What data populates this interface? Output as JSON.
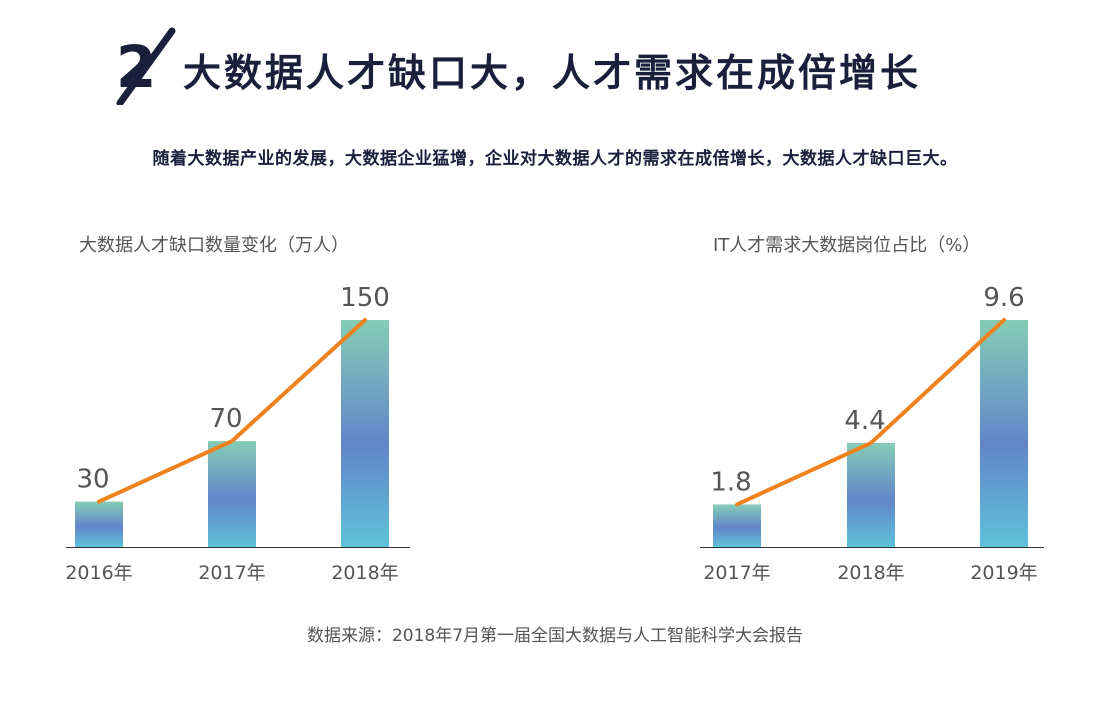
{
  "header": {
    "badge_icon": "number-2-slash-icon",
    "title": "大数据人才缺口大，人才需求在成倍增长",
    "subtitle": "随着大数据产业的发展，大数据企业猛增，企业对大数据人才的需求在成倍增长，大数据人才缺口巨大。"
  },
  "colors": {
    "title": "#1a1f3c",
    "line": "#f0821e",
    "bar_top": "#85cdb6",
    "bar_mid": "#6185c9",
    "bar_bottom": "#5fc2d9",
    "axis": "#333333",
    "label": "#555555"
  },
  "chart_data": [
    {
      "type": "bar",
      "title": "大数据人才缺口数量变化（万人）",
      "categories": [
        "2016年",
        "2017年",
        "2018年"
      ],
      "values": [
        30,
        70,
        150
      ],
      "value_labels": [
        "30",
        "70",
        "150"
      ],
      "overlay_line": true,
      "ylim": [
        0,
        150
      ],
      "grid": false,
      "legend": "none"
    },
    {
      "type": "bar",
      "title": "IT人才需求大数据岗位占比（%）",
      "categories": [
        "2017年",
        "2018年",
        "2019年"
      ],
      "values": [
        1.8,
        4.4,
        9.6
      ],
      "value_labels": [
        "1.8",
        "4.4",
        "9.6"
      ],
      "overlay_line": true,
      "ylim": [
        0,
        9.6
      ],
      "grid": false,
      "legend": "none"
    }
  ],
  "footer": {
    "source": "数据来源：2018年7月第一届全国大数据与人工智能科学大会报告"
  }
}
